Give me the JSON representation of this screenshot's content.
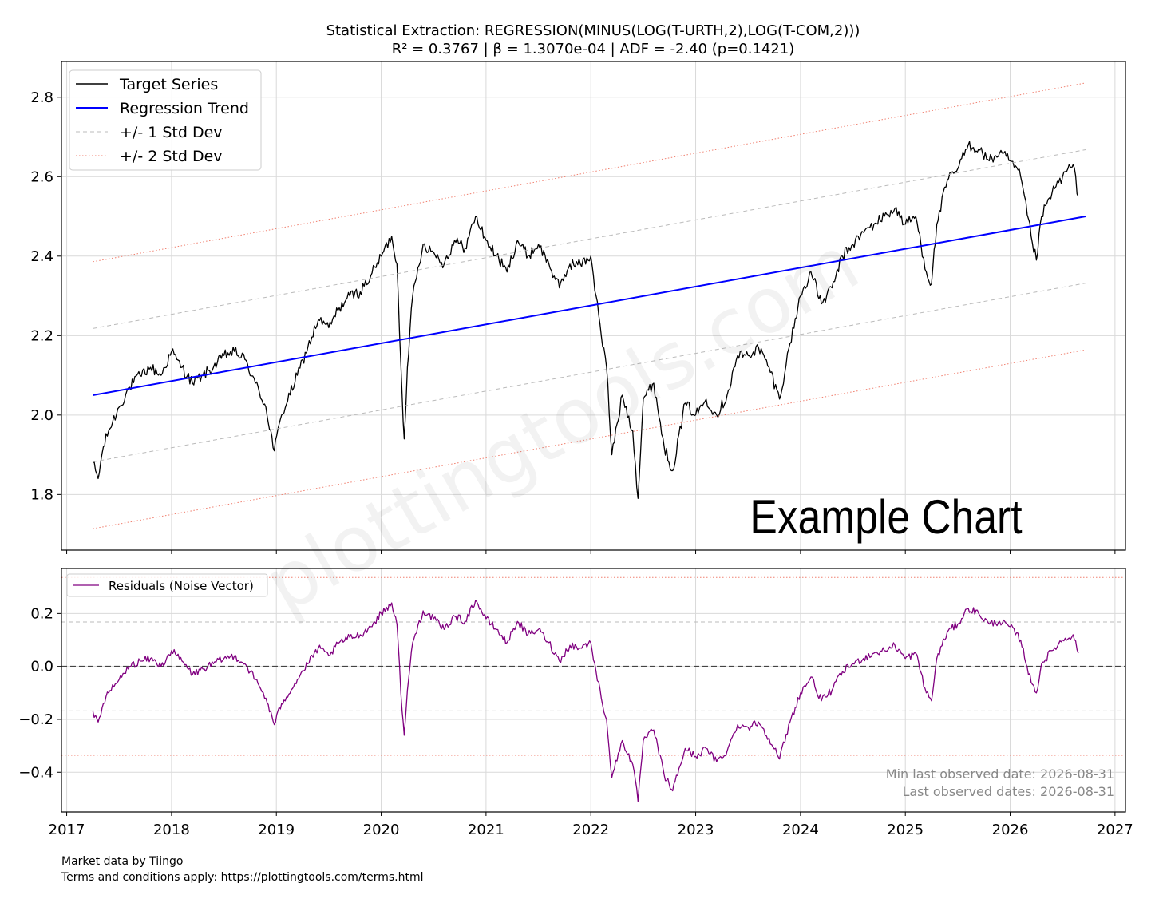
{
  "title_line1": "Statistical Extraction: REGRESSION(MINUS(LOG(T-URTH,2),LOG(T-COM,2)))",
  "title_line2": "R² = 0.3767  |  β = 1.3070e-04  |  ADF = -2.40 (p=0.1421)",
  "watermark": "plottingtools.com",
  "example_label": "Example Chart",
  "footer_line1": "Market data by Tiingo",
  "footer_line2": "Terms and conditions apply: https://plottingtools.com/terms.html",
  "annotation_line1": "Min last observed date: 2026-08-31",
  "annotation_line2": "Last observed dates: 2026-08-31",
  "colors": {
    "target": "#000000",
    "trend": "#0000ff",
    "std1": "#bbbbbb",
    "std2": "#f08070",
    "residual": "#800080",
    "zero": "#444444",
    "grid": "#d9d9d9"
  },
  "chart_data": [
    {
      "type": "line",
      "panel": "main",
      "legend_placement": "top-left",
      "grid": true,
      "xlim": [
        2016.95,
        2027.1
      ],
      "ylim": [
        1.66,
        2.89
      ],
      "x_ticks": [
        2017,
        2018,
        2019,
        2020,
        2021,
        2022,
        2023,
        2024,
        2025,
        2026,
        2027
      ],
      "y_ticks": [
        1.8,
        2.0,
        2.2,
        2.4,
        2.6,
        2.8
      ],
      "y_tick_labels": [
        "1.8",
        "2.0",
        "2.2",
        "2.4",
        "2.6",
        "2.8"
      ],
      "series": [
        {
          "name": "Target Series",
          "style": "solid",
          "x": [
            2017.25,
            2017.3,
            2017.35,
            2017.4,
            2017.5,
            2017.6,
            2017.7,
            2017.8,
            2017.9,
            2018.0,
            2018.05,
            2018.1,
            2018.2,
            2018.3,
            2018.4,
            2018.5,
            2018.6,
            2018.7,
            2018.8,
            2018.9,
            2018.98,
            2019.05,
            2019.2,
            2019.3,
            2019.4,
            2019.5,
            2019.6,
            2019.7,
            2019.8,
            2019.9,
            2020.0,
            2020.1,
            2020.15,
            2020.2,
            2020.22,
            2020.25,
            2020.3,
            2020.4,
            2020.5,
            2020.6,
            2020.7,
            2020.8,
            2020.9,
            2021.0,
            2021.1,
            2021.2,
            2021.3,
            2021.4,
            2021.5,
            2021.6,
            2021.7,
            2021.8,
            2021.9,
            2022.0,
            2022.05,
            2022.1,
            2022.15,
            2022.2,
            2022.3,
            2022.4,
            2022.45,
            2022.5,
            2022.6,
            2022.7,
            2022.78,
            2022.9,
            2023.0,
            2023.1,
            2023.2,
            2023.3,
            2023.4,
            2023.5,
            2023.6,
            2023.7,
            2023.8,
            2023.9,
            2024.0,
            2024.1,
            2024.2,
            2024.3,
            2024.4,
            2024.5,
            2024.6,
            2024.7,
            2024.8,
            2024.9,
            2025.0,
            2025.1,
            2025.2,
            2025.25,
            2025.3,
            2025.4,
            2025.5,
            2025.6,
            2025.7,
            2025.8,
            2025.9,
            2026.0,
            2026.1,
            2026.2,
            2026.25,
            2026.3,
            2026.4,
            2026.5,
            2026.6,
            2026.65
          ],
          "y": [
            1.88,
            1.84,
            1.92,
            1.96,
            2.02,
            2.07,
            2.1,
            2.12,
            2.1,
            2.16,
            2.14,
            2.12,
            2.08,
            2.1,
            2.12,
            2.15,
            2.16,
            2.14,
            2.08,
            2.02,
            1.91,
            2.0,
            2.1,
            2.17,
            2.24,
            2.22,
            2.27,
            2.3,
            2.31,
            2.35,
            2.4,
            2.45,
            2.38,
            2.05,
            1.94,
            2.12,
            2.3,
            2.43,
            2.41,
            2.38,
            2.44,
            2.42,
            2.5,
            2.44,
            2.4,
            2.36,
            2.44,
            2.4,
            2.43,
            2.38,
            2.32,
            2.38,
            2.38,
            2.4,
            2.3,
            2.2,
            2.12,
            1.9,
            2.05,
            1.96,
            1.79,
            2.04,
            2.08,
            1.92,
            1.86,
            2.03,
            2.0,
            2.04,
            2.0,
            2.05,
            2.15,
            2.15,
            2.17,
            2.12,
            2.04,
            2.18,
            2.3,
            2.36,
            2.28,
            2.32,
            2.4,
            2.43,
            2.46,
            2.48,
            2.5,
            2.52,
            2.48,
            2.5,
            2.36,
            2.33,
            2.48,
            2.59,
            2.62,
            2.68,
            2.67,
            2.64,
            2.66,
            2.64,
            2.6,
            2.45,
            2.39,
            2.5,
            2.56,
            2.6,
            2.63,
            2.55
          ]
        },
        {
          "name": "Regression Trend",
          "style": "solid",
          "x": [
            2017.25,
            2026.72
          ],
          "y": [
            2.05,
            2.5
          ]
        },
        {
          "name": "+/- 1 Std Dev",
          "style": "dashed",
          "x": [
            2017.25,
            2026.72
          ],
          "y": [
            2.218,
            2.668
          ]
        },
        {
          "name": "",
          "style": "dashed",
          "x": [
            2017.25,
            2026.72
          ],
          "y": [
            1.882,
            2.332
          ]
        },
        {
          "name": "+/- 2 Std Dev",
          "style": "dotted",
          "x": [
            2017.25,
            2026.72
          ],
          "y": [
            2.386,
            2.836
          ]
        },
        {
          "name": "",
          "style": "dotted",
          "x": [
            2017.25,
            2026.72
          ],
          "y": [
            1.714,
            2.164
          ]
        }
      ]
    },
    {
      "type": "line",
      "panel": "residuals",
      "legend_placement": "top-left",
      "grid": true,
      "xlim": [
        2016.95,
        2027.1
      ],
      "ylim": [
        -0.55,
        0.37
      ],
      "x_ticks": [
        2017,
        2018,
        2019,
        2020,
        2021,
        2022,
        2023,
        2024,
        2025,
        2026,
        2027
      ],
      "x_tick_labels": [
        "2017",
        "2018",
        "2019",
        "2020",
        "2021",
        "2022",
        "2023",
        "2024",
        "2025",
        "2026",
        "2027"
      ],
      "y_ticks": [
        -0.4,
        -0.2,
        0.0,
        0.2
      ],
      "y_tick_labels": [
        "−0.4",
        "−0.2",
        "0.0",
        "0.2"
      ],
      "reference_lines": [
        {
          "y": 0.0,
          "style": "dashed",
          "color": "#444444"
        },
        {
          "y": 0.168,
          "style": "dashed",
          "color": "#bbbbbb"
        },
        {
          "y": -0.168,
          "style": "dashed",
          "color": "#bbbbbb"
        },
        {
          "y": 0.336,
          "style": "dotted",
          "color": "#f08070"
        },
        {
          "y": -0.336,
          "style": "dotted",
          "color": "#f08070"
        }
      ],
      "series": [
        {
          "name": "Residuals (Noise Vector)",
          "style": "solid",
          "x": [
            2017.25,
            2017.3,
            2017.35,
            2017.4,
            2017.5,
            2017.6,
            2017.7,
            2017.8,
            2017.9,
            2018.0,
            2018.05,
            2018.1,
            2018.2,
            2018.3,
            2018.4,
            2018.5,
            2018.6,
            2018.7,
            2018.8,
            2018.9,
            2018.98,
            2019.05,
            2019.2,
            2019.3,
            2019.4,
            2019.5,
            2019.6,
            2019.7,
            2019.8,
            2019.9,
            2020.0,
            2020.1,
            2020.15,
            2020.2,
            2020.22,
            2020.25,
            2020.3,
            2020.4,
            2020.5,
            2020.6,
            2020.7,
            2020.8,
            2020.9,
            2021.0,
            2021.1,
            2021.2,
            2021.3,
            2021.4,
            2021.5,
            2021.6,
            2021.7,
            2021.8,
            2021.9,
            2022.0,
            2022.05,
            2022.1,
            2022.15,
            2022.2,
            2022.3,
            2022.4,
            2022.45,
            2022.5,
            2022.6,
            2022.7,
            2022.78,
            2022.9,
            2023.0,
            2023.1,
            2023.2,
            2023.3,
            2023.4,
            2023.5,
            2023.6,
            2023.7,
            2023.8,
            2023.9,
            2024.0,
            2024.1,
            2024.2,
            2024.3,
            2024.4,
            2024.5,
            2024.6,
            2024.7,
            2024.8,
            2024.9,
            2025.0,
            2025.1,
            2025.2,
            2025.25,
            2025.3,
            2025.4,
            2025.5,
            2025.6,
            2025.7,
            2025.8,
            2025.9,
            2026.0,
            2026.1,
            2026.2,
            2026.25,
            2026.3,
            2026.4,
            2026.5,
            2026.6,
            2026.65
          ],
          "y": [
            -0.17,
            -0.21,
            -0.14,
            -0.1,
            -0.05,
            0.0,
            0.02,
            0.03,
            0.0,
            0.06,
            0.04,
            0.02,
            -0.03,
            -0.01,
            0.01,
            0.03,
            0.04,
            0.01,
            -0.05,
            -0.12,
            -0.22,
            -0.14,
            -0.05,
            0.01,
            0.07,
            0.04,
            0.09,
            0.11,
            0.12,
            0.15,
            0.2,
            0.24,
            0.16,
            -0.17,
            -0.26,
            -0.09,
            0.09,
            0.21,
            0.18,
            0.14,
            0.19,
            0.17,
            0.25,
            0.18,
            0.14,
            0.09,
            0.17,
            0.12,
            0.14,
            0.09,
            0.02,
            0.08,
            0.07,
            0.09,
            -0.02,
            -0.12,
            -0.2,
            -0.42,
            -0.28,
            -0.37,
            -0.51,
            -0.28,
            -0.24,
            -0.41,
            -0.47,
            -0.31,
            -0.34,
            -0.31,
            -0.36,
            -0.32,
            -0.22,
            -0.23,
            -0.21,
            -0.27,
            -0.35,
            -0.21,
            -0.1,
            -0.04,
            -0.13,
            -0.09,
            -0.02,
            0.01,
            0.03,
            0.05,
            0.06,
            0.08,
            0.03,
            0.05,
            -0.1,
            -0.13,
            0.03,
            0.13,
            0.16,
            0.22,
            0.2,
            0.16,
            0.17,
            0.15,
            0.1,
            -0.06,
            -0.1,
            0.01,
            0.06,
            0.1,
            0.12,
            0.05
          ]
        }
      ]
    }
  ]
}
